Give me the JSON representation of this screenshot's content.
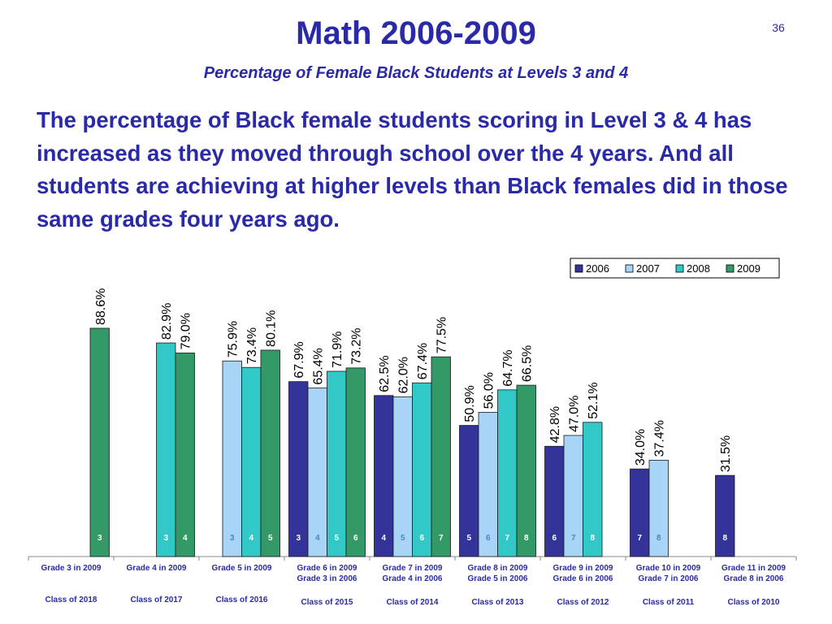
{
  "slide": {
    "title": "Math 2006-2009",
    "subtitle": "Percentage of Female Black Students at Levels 3 and 4",
    "number": "36",
    "body": "The percentage of Black female students scoring in Level 3 & 4 has increased as they moved through school over the 4 years. And all students are achieving at higher levels than Black females did in those same grades four years ago."
  },
  "chart_data": {
    "type": "bar",
    "ylim": [
      0,
      100
    ],
    "grid": false,
    "legend_position": "top-right",
    "series": [
      {
        "name": "2006",
        "color": "#33339a"
      },
      {
        "name": "2007",
        "color": "#a8d4f8"
      },
      {
        "name": "2008",
        "color": "#33c8c8"
      },
      {
        "name": "2009",
        "color": "#339966"
      }
    ],
    "groups": [
      {
        "category": "Grade 3 in 2009",
        "category2": "",
        "class": "Class of 2018",
        "bars": [
          {
            "series": "2009",
            "value": 88.6,
            "label": "88.6%",
            "level": "3"
          }
        ]
      },
      {
        "category": "Grade 4 in 2009",
        "category2": "",
        "class": "Class of 2017",
        "bars": [
          {
            "series": "2008",
            "value": 82.9,
            "label": "82.9%",
            "level": "3"
          },
          {
            "series": "2009",
            "value": 79.0,
            "label": "79.0%",
            "level": "4"
          }
        ]
      },
      {
        "category": "Grade 5 in 2009",
        "category2": "",
        "class": "Class of 2016",
        "bars": [
          {
            "series": "2007",
            "value": 75.9,
            "label": "75.9%",
            "level": "3"
          },
          {
            "series": "2008",
            "value": 73.4,
            "label": "73.4%",
            "level": "4"
          },
          {
            "series": "2009",
            "value": 80.1,
            "label": "80.1%",
            "level": "5"
          }
        ]
      },
      {
        "category": "Grade 6 in 2009",
        "category2": "Grade 3 in 2006",
        "class": "Class of 2015",
        "bars": [
          {
            "series": "2006",
            "value": 67.9,
            "label": "67.9%",
            "level": "3"
          },
          {
            "series": "2007",
            "value": 65.4,
            "label": "65.4%",
            "level": "4"
          },
          {
            "series": "2008",
            "value": 71.9,
            "label": "71.9%",
            "level": "5"
          },
          {
            "series": "2009",
            "value": 73.2,
            "label": "73.2%",
            "level": "6"
          }
        ]
      },
      {
        "category": "Grade 7 in 2009",
        "category2": "Grade 4 in 2006",
        "class": "Class of 2014",
        "bars": [
          {
            "series": "2006",
            "value": 62.5,
            "label": "62.5%",
            "level": "4"
          },
          {
            "series": "2007",
            "value": 62.0,
            "label": "62.0%",
            "level": "5"
          },
          {
            "series": "2008",
            "value": 67.4,
            "label": "67.4%",
            "level": "6"
          },
          {
            "series": "2009",
            "value": 77.5,
            "label": "77.5%",
            "level": "7"
          }
        ]
      },
      {
        "category": "Grade 8 in 2009",
        "category2": "Grade 5 in 2006",
        "class": "Class of 2013",
        "bars": [
          {
            "series": "2006",
            "value": 50.9,
            "label": "50.9%",
            "level": "5"
          },
          {
            "series": "2007",
            "value": 56.0,
            "label": "56.0%",
            "level": "6"
          },
          {
            "series": "2008",
            "value": 64.7,
            "label": "64.7%",
            "level": "7"
          },
          {
            "series": "2009",
            "value": 66.5,
            "label": "66.5%",
            "level": "8"
          }
        ]
      },
      {
        "category": "Grade 9 in 2009",
        "category2": "Grade 6 in 2006",
        "class": "Class of 2012",
        "bars": [
          {
            "series": "2006",
            "value": 42.8,
            "label": "42.8%",
            "level": "6"
          },
          {
            "series": "2007",
            "value": 47.0,
            "label": "47.0%",
            "level": "7"
          },
          {
            "series": "2008",
            "value": 52.1,
            "label": "52.1%",
            "level": "8"
          }
        ]
      },
      {
        "category": "Grade 10 in 2009",
        "category2": "Grade 7 in 2006",
        "class": "Class of 2011",
        "bars": [
          {
            "series": "2006",
            "value": 34.0,
            "label": "34.0%",
            "level": "7"
          },
          {
            "series": "2007",
            "value": 37.4,
            "label": "37.4%",
            "level": "8"
          }
        ]
      },
      {
        "category": "Grade 11 in 2009",
        "category2": "Grade 8 in 2006",
        "class": "Class of 2010",
        "bars": [
          {
            "series": "2006",
            "value": 31.5,
            "label": "31.5%",
            "level": "8"
          }
        ]
      }
    ]
  }
}
